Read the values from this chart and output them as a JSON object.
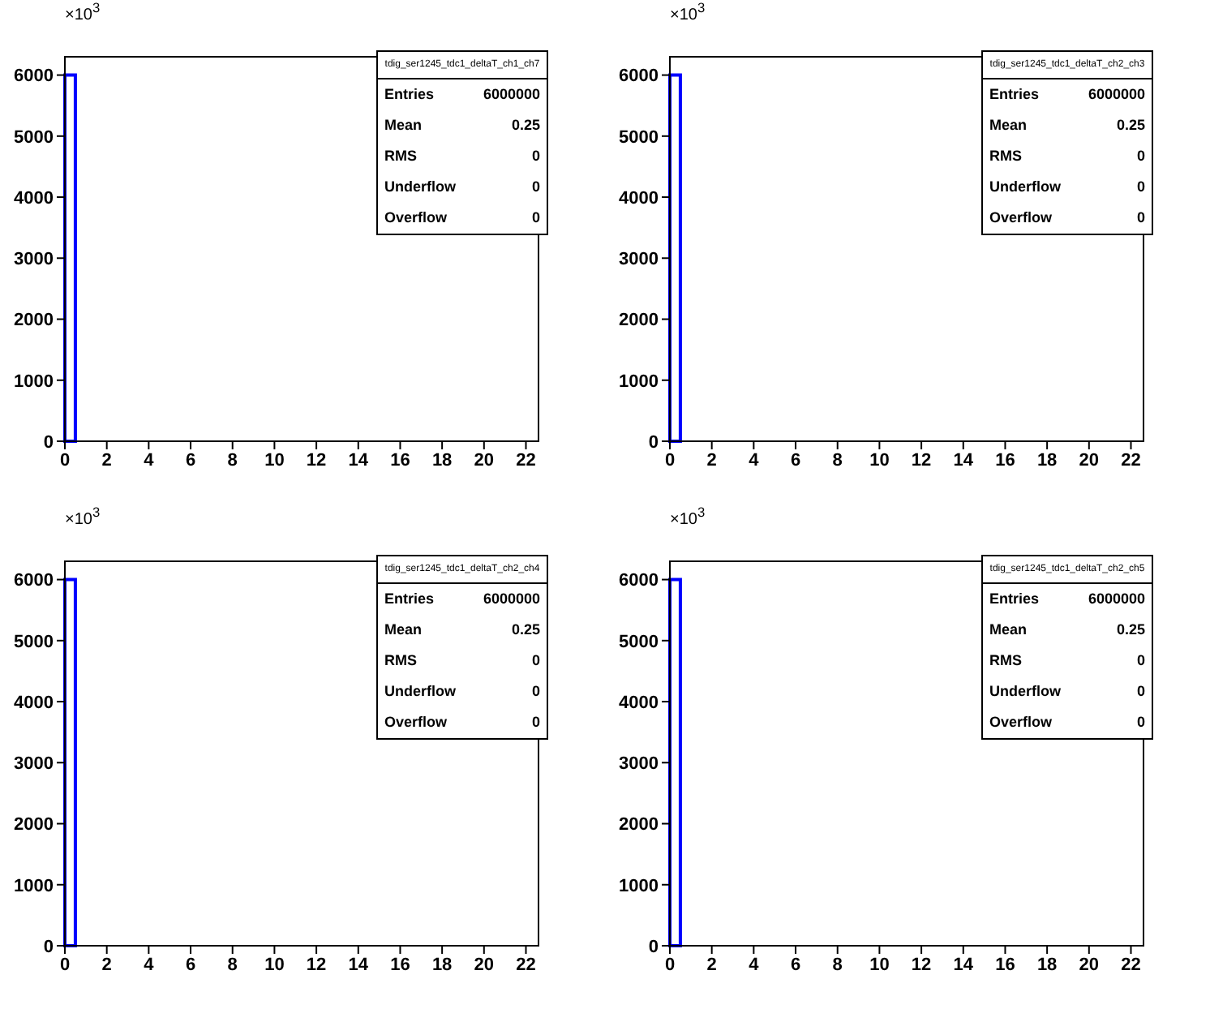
{
  "chart_data": [
    {
      "type": "histogram",
      "title": "tdig_ser1245_tdc1_deltaT_ch1_ch7",
      "ylabel": "×10$^{3}$",
      "bins": [
        0,
        0.5
      ],
      "values": [
        6000
      ],
      "color": "#0000ff",
      "xlim": [
        0,
        22.6
      ],
      "ylim": [
        0,
        6300
      ],
      "xticks": [
        0,
        2,
        4,
        6,
        8,
        10,
        12,
        14,
        16,
        18,
        20,
        22
      ],
      "yticks": [
        0,
        1000,
        2000,
        3000,
        4000,
        5000,
        6000
      ],
      "annotations": [
        "Entries",
        "6000000",
        "Mean",
        "0.25",
        "RMS",
        "0",
        "Underflow",
        "0",
        "Overflow",
        "0"
      ]
    },
    {
      "type": "histogram",
      "title": "tdig_ser1245_tdc1_deltaT_ch2_ch3",
      "ylabel": "×10$^{3}$",
      "bins": [
        0,
        0.5
      ],
      "values": [
        6000
      ],
      "color": "#0000ff",
      "xlim": [
        0,
        22.6
      ],
      "ylim": [
        0,
        6300
      ],
      "xticks": [
        0,
        2,
        4,
        6,
        8,
        10,
        12,
        14,
        16,
        18,
        20,
        22
      ],
      "yticks": [
        0,
        1000,
        2000,
        3000,
        4000,
        5000,
        6000
      ],
      "annotations": [
        "Entries",
        "6000000",
        "Mean",
        "0.25",
        "RMS",
        "0",
        "Underflow",
        "0",
        "Overflow",
        "0"
      ]
    },
    {
      "type": "histogram",
      "title": "tdig_ser1245_tdc1_deltaT_ch2_ch4",
      "ylabel": "×10$^{3}$",
      "bins": [
        0,
        0.5
      ],
      "values": [
        6000
      ],
      "color": "#0000ff",
      "xlim": [
        0,
        22.6
      ],
      "ylim": [
        0,
        6300
      ],
      "xticks": [
        0,
        2,
        4,
        6,
        8,
        10,
        12,
        14,
        16,
        18,
        20,
        22
      ],
      "yticks": [
        0,
        1000,
        2000,
        3000,
        4000,
        5000,
        6000
      ],
      "annotations": [
        "Entries",
        "6000000",
        "Mean",
        "0.25",
        "RMS",
        "0",
        "Underflow",
        "0",
        "Overflow",
        "0"
      ]
    },
    {
      "type": "histogram",
      "title": "tdig_ser1245_tdc1_deltaT_ch2_ch5",
      "ylabel": "×10$^{3}$",
      "bins": [
        0,
        0.5
      ],
      "values": [
        6000
      ],
      "color": "#0000ff",
      "xlim": [
        0,
        22.6
      ],
      "ylim": [
        0,
        6300
      ],
      "xticks": [
        0,
        2,
        4,
        6,
        8,
        10,
        12,
        14,
        16,
        18,
        20,
        22
      ],
      "yticks": [
        0,
        1000,
        2000,
        3000,
        4000,
        5000,
        6000
      ],
      "annotations": [
        "Entries",
        "6000000",
        "Mean",
        "0.25",
        "RMS",
        "0",
        "Underflow",
        "0",
        "Overflow",
        "0"
      ]
    }
  ]
}
